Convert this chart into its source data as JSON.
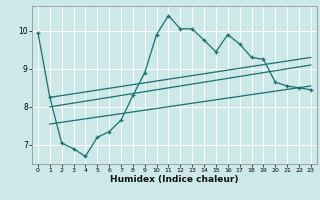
{
  "xlabel": "Humidex (Indice chaleur)",
  "bg_color": "#cce8e8",
  "line_color": "#1a7070",
  "grid_color": "#ffffff",
  "xlim": [
    -0.5,
    23.5
  ],
  "ylim": [
    6.5,
    10.65
  ],
  "yticks": [
    7,
    8,
    9,
    10
  ],
  "xticks": [
    0,
    1,
    2,
    3,
    4,
    5,
    6,
    7,
    8,
    9,
    10,
    11,
    12,
    13,
    14,
    15,
    16,
    17,
    18,
    19,
    20,
    21,
    22,
    23
  ],
  "line1_x": [
    0,
    1,
    2,
    3,
    4,
    5,
    6,
    7,
    8,
    9,
    10,
    11,
    12,
    13,
    14,
    15,
    16,
    17,
    18,
    19,
    20,
    21,
    22,
    23
  ],
  "line1_y": [
    9.95,
    8.25,
    7.05,
    6.9,
    6.7,
    7.2,
    7.35,
    7.65,
    8.3,
    8.9,
    9.9,
    10.4,
    10.05,
    10.05,
    9.75,
    9.45,
    9.9,
    9.65,
    9.3,
    9.25,
    8.65,
    8.55,
    8.5,
    8.45
  ],
  "line2_x": [
    1,
    23
  ],
  "line2_y": [
    8.25,
    9.3
  ],
  "line3_x": [
    1,
    23
  ],
  "line3_y": [
    8.0,
    9.1
  ],
  "line4_x": [
    1,
    23
  ],
  "line4_y": [
    7.55,
    8.55
  ]
}
